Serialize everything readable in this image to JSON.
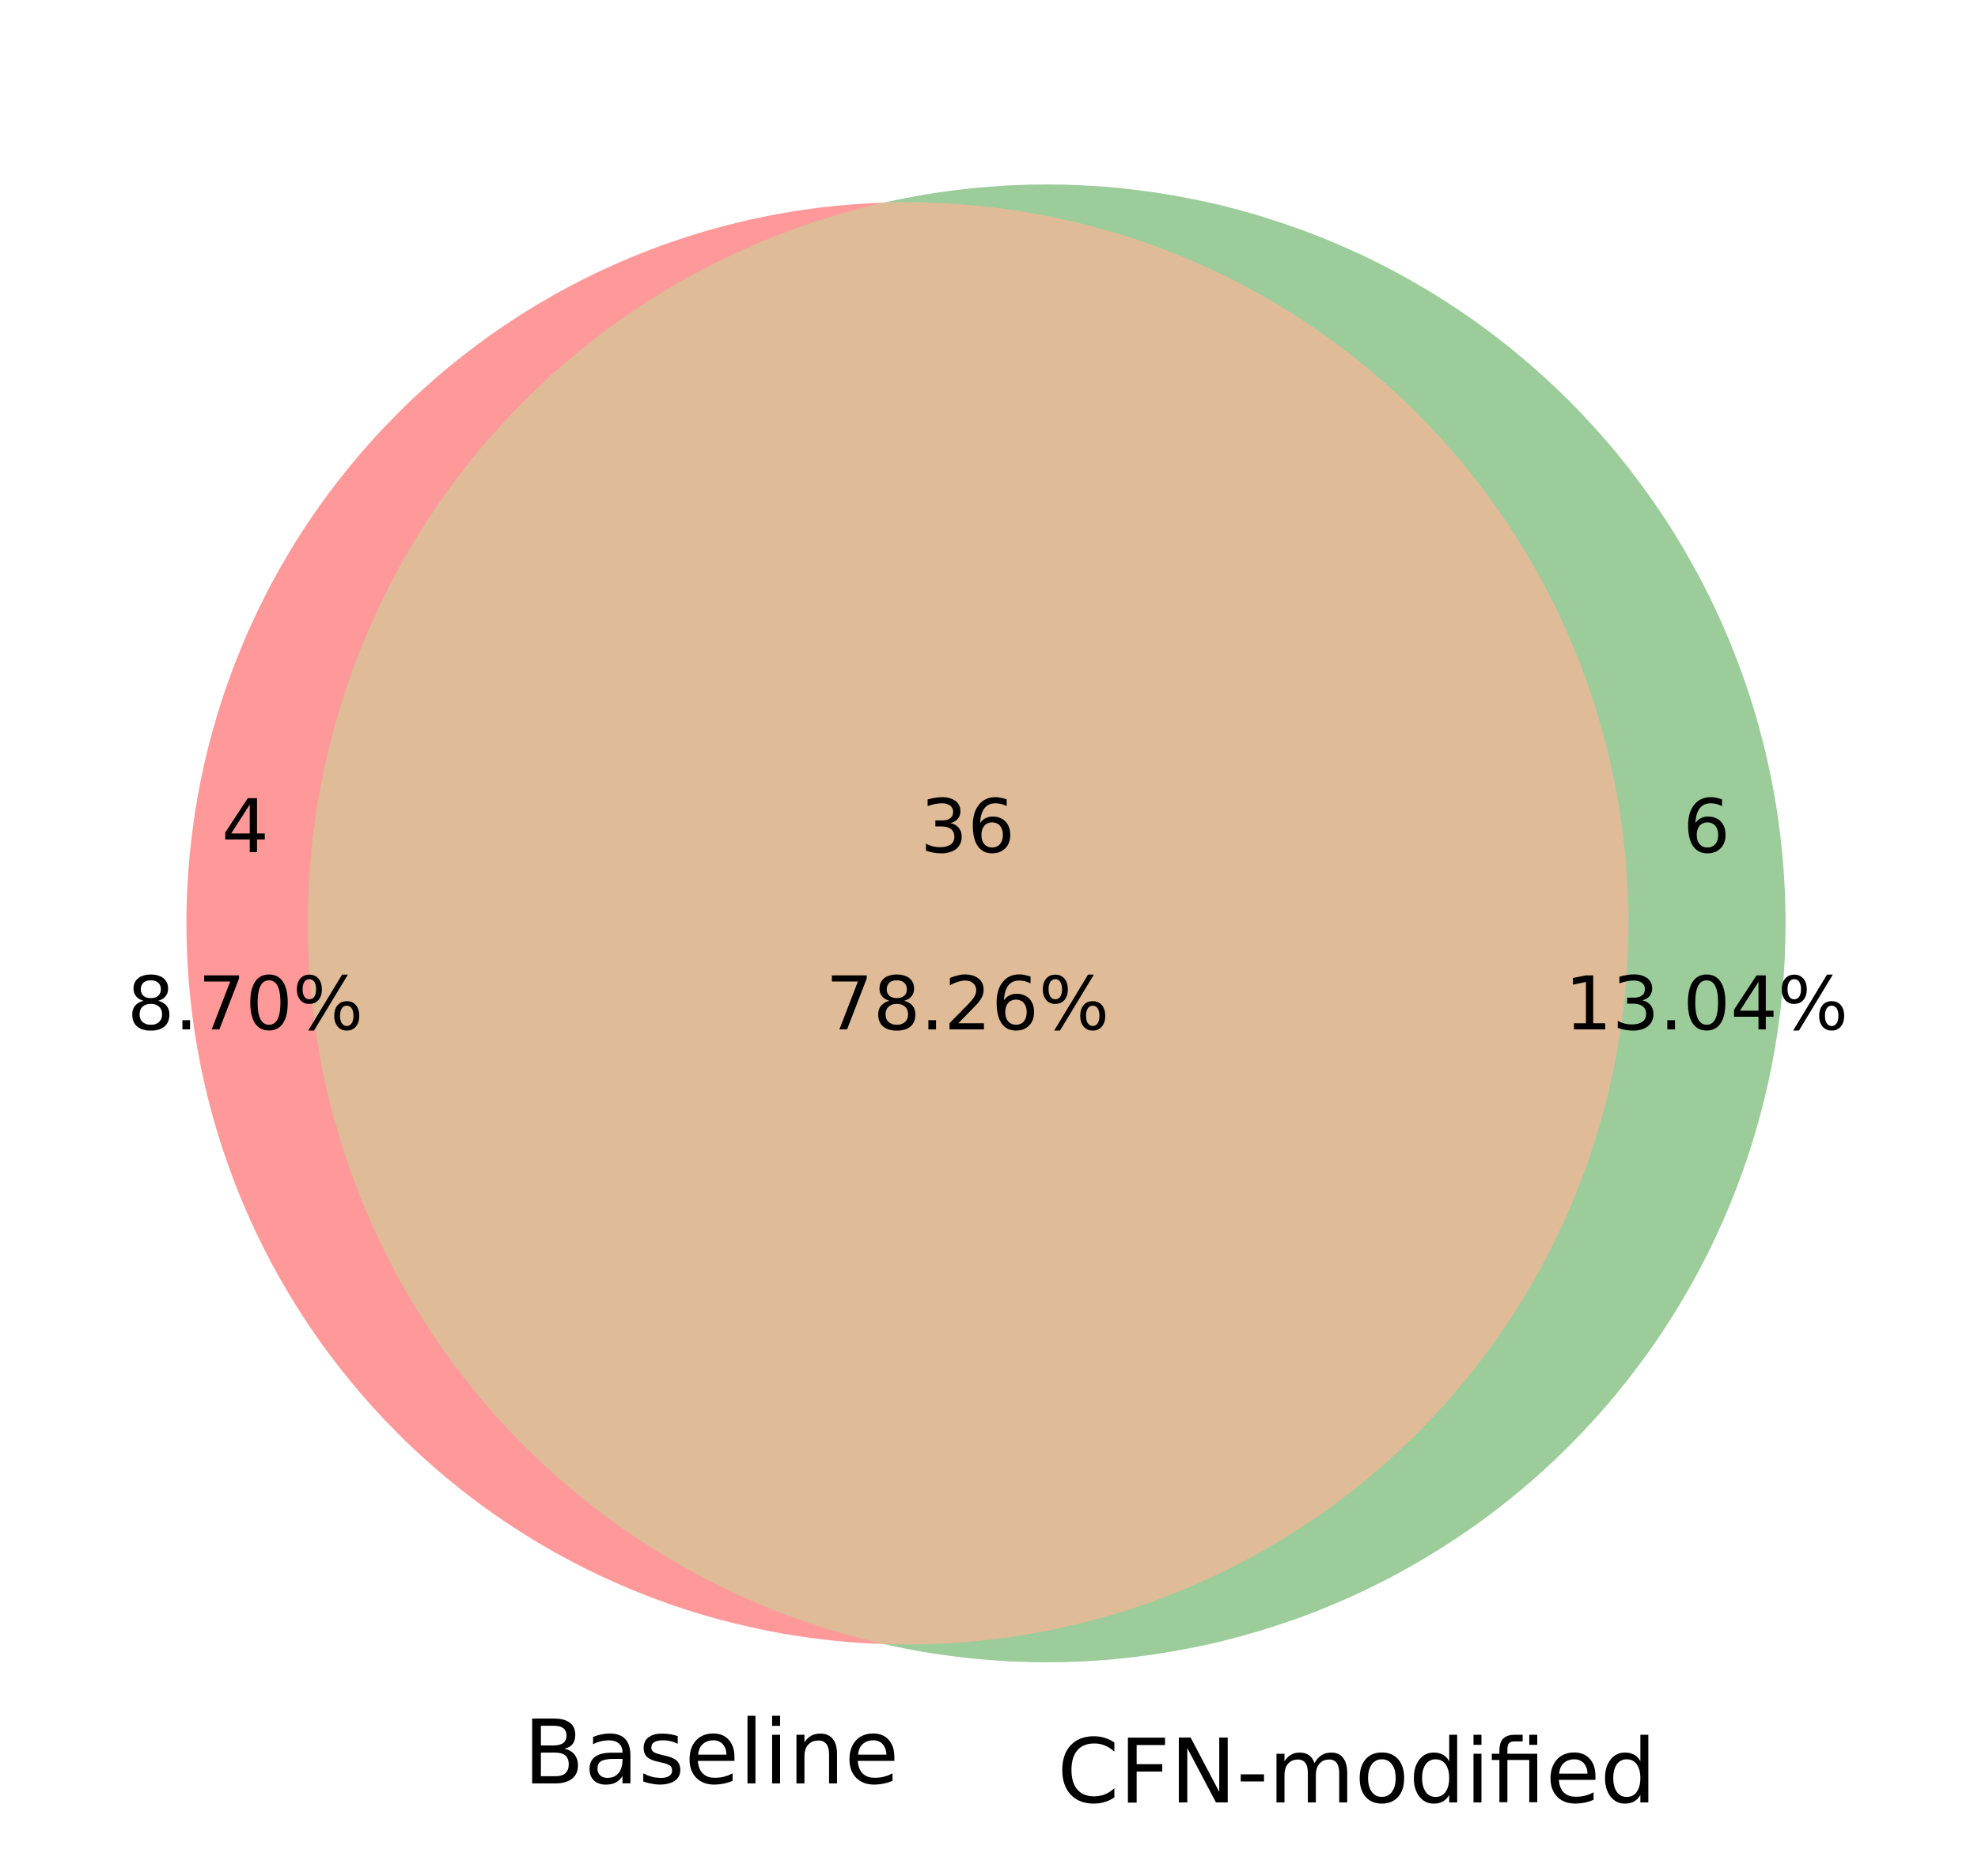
{
  "chart_data": {
    "type": "venn",
    "sets": [
      {
        "name": "Baseline",
        "color": "#ff9999"
      },
      {
        "name": "CFN-modified",
        "color": "#9ccc9a"
      }
    ],
    "overlap_color": "#dfbb98",
    "values": [
      4,
      36,
      6
    ],
    "percents": [
      8.7,
      78.26,
      13.04
    ],
    "percent_labels": [
      "8.70%",
      "78.26%",
      "13.04%"
    ]
  }
}
